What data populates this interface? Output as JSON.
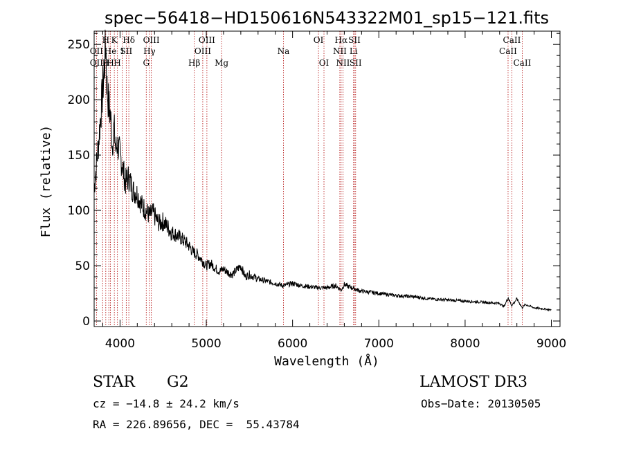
{
  "chart_data": {
    "type": "line",
    "title": "spec−56418−HD150616N543322M01_sp15−121.fits",
    "xlabel": "Wavelength (Å)",
    "ylabel": "Flux (relative)",
    "xlim": [
      3700,
      9100
    ],
    "ylim": [
      -5,
      262
    ],
    "xticks": [
      4000,
      5000,
      6000,
      7000,
      8000,
      9000
    ],
    "xtick_labels": [
      "4000",
      "5000",
      "6000",
      "7000",
      "8000",
      "9000"
    ],
    "yticks": [
      0,
      50,
      100,
      150,
      200,
      250
    ],
    "ytick_labels": [
      "0",
      "50",
      "100",
      "150",
      "200",
      "250"
    ],
    "series": [
      {
        "color": "#000000",
        "x": [
          3700,
          3750,
          3790,
          3820,
          3835,
          3850,
          3870,
          3890,
          3910,
          3930,
          3950,
          3970,
          4000,
          4030,
          4060,
          4100,
          4150,
          4200,
          4250,
          4300,
          4340,
          4380,
          4420,
          4460,
          4500,
          4550,
          4600,
          4650,
          4700,
          4750,
          4800,
          4850,
          4900,
          4950,
          5000,
          5050,
          5100,
          5150,
          5200,
          5250,
          5300,
          5350,
          5400,
          5450,
          5500,
          5600,
          5700,
          5800,
          5890,
          5950,
          6000,
          6100,
          6200,
          6300,
          6400,
          6500,
          6563,
          6600,
          6650,
          6700,
          6750,
          6800,
          6900,
          7000,
          7200,
          7400,
          7600,
          7800,
          8000,
          8200,
          8400,
          8450,
          8500,
          8540,
          8600,
          8662,
          8700,
          8800,
          8900,
          9000
        ],
        "y": [
          120,
          160,
          200,
          230,
          250,
          210,
          195,
          185,
          160,
          175,
          155,
          160,
          150,
          140,
          125,
          130,
          118,
          115,
          105,
          100,
          95,
          98,
          92,
          88,
          90,
          85,
          80,
          78,
          75,
          72,
          68,
          62,
          60,
          55,
          50,
          52,
          48,
          45,
          47,
          44,
          42,
          46,
          50,
          40,
          42,
          38,
          36,
          34,
          32,
          33,
          34,
          32,
          31,
          30,
          30,
          32,
          28,
          33,
          31,
          30,
          28,
          27,
          26,
          25,
          23,
          22,
          20,
          19,
          18,
          17,
          16,
          13,
          21,
          14,
          20,
          12,
          15,
          12,
          11,
          10
        ]
      }
    ],
    "lines": [
      {
        "w": 3727,
        "labels": [
          "",
          "OII",
          "OII"
        ]
      },
      {
        "w": 3798,
        "labels": [
          "",
          "",
          ""
        ]
      },
      {
        "w": 3835,
        "labels": [
          "H",
          "",
          "H"
        ]
      },
      {
        "w": 3870,
        "labels": [
          "",
          "",
          ""
        ]
      },
      {
        "w": 3889,
        "labels": [
          "",
          "He",
          "H"
        ]
      },
      {
        "w": 3934,
        "labels": [
          "K",
          "",
          ""
        ]
      },
      {
        "w": 3970,
        "labels": [
          "",
          "",
          "H"
        ]
      },
      {
        "w": 4026,
        "labels": [
          "",
          "I",
          ""
        ]
      },
      {
        "w": 4072,
        "labels": [
          "",
          "SII",
          ""
        ]
      },
      {
        "w": 4102,
        "labels": [
          "Hδ",
          "",
          ""
        ]
      },
      {
        "w": 4304,
        "labels": [
          "",
          "",
          "G"
        ]
      },
      {
        "w": 4341,
        "labels": [
          "",
          "Hγ",
          ""
        ]
      },
      {
        "w": 4363,
        "labels": [
          "OIII",
          "",
          ""
        ]
      },
      {
        "w": 4861,
        "labels": [
          "",
          "",
          "Hβ"
        ]
      },
      {
        "w": 4959,
        "labels": [
          "",
          "OIII",
          ""
        ]
      },
      {
        "w": 5007,
        "labels": [
          "OIII",
          "",
          ""
        ]
      },
      {
        "w": 5177,
        "labels": [
          "",
          "",
          "Mg"
        ]
      },
      {
        "w": 5894,
        "labels": [
          "",
          "Na",
          ""
        ]
      },
      {
        "w": 6300,
        "labels": [
          "OI",
          "",
          ""
        ]
      },
      {
        "w": 6364,
        "labels": [
          "",
          "",
          "OI"
        ]
      },
      {
        "w": 6548,
        "labels": [
          "",
          "NII",
          ""
        ]
      },
      {
        "w": 6563,
        "labels": [
          "Hα",
          "",
          ""
        ]
      },
      {
        "w": 6584,
        "labels": [
          "",
          "",
          "NII"
        ]
      },
      {
        "w": 6707,
        "labels": [
          "",
          "Li",
          ""
        ]
      },
      {
        "w": 6717,
        "labels": [
          "SII",
          "",
          ""
        ]
      },
      {
        "w": 6731,
        "labels": [
          "",
          "",
          "SII"
        ]
      },
      {
        "w": 8498,
        "labels": [
          "",
          "CaII",
          ""
        ]
      },
      {
        "w": 8542,
        "labels": [
          "CaII",
          "",
          ""
        ]
      },
      {
        "w": 8662,
        "labels": [
          "",
          "",
          "CaII"
        ]
      }
    ]
  },
  "info": {
    "class": "STAR",
    "subclass": "G2",
    "survey": "LAMOST DR3",
    "cz": "cz = −14.8 ± 24.2 km/s",
    "obs_date": "Obs−Date: 20130505",
    "radec": "RA = 226.89656, DEC =  55.43784"
  }
}
